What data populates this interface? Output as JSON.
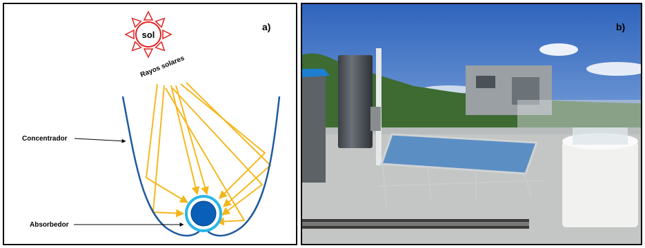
{
  "panel_a": {
    "label": "a)",
    "sun": "sol",
    "rays": "Rayos solares",
    "concentrator": "Concentrador",
    "absorber": "Absorbedor"
  },
  "panel_b": {
    "label": "b)"
  }
}
